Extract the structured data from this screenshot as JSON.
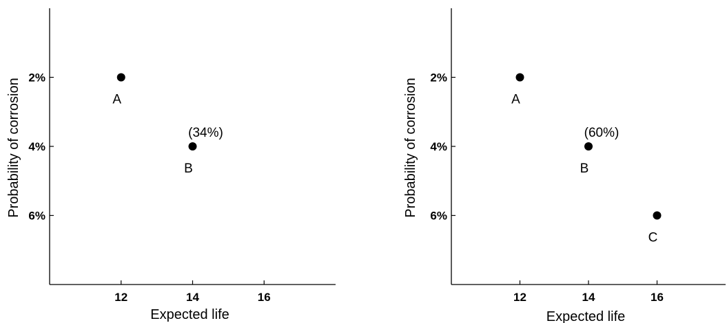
{
  "chart_data": [
    {
      "type": "scatter",
      "xlabel": "Expected life",
      "ylabel": "Probability of corrosion",
      "xlim": [
        10,
        18
      ],
      "ylim": [
        0,
        8
      ],
      "y_inverted": true,
      "x_ticks": [
        12,
        14,
        16
      ],
      "x_tick_labels": [
        "12",
        "14",
        "16"
      ],
      "y_ticks": [
        2,
        4,
        6
      ],
      "y_tick_labels": [
        "2%",
        "4%",
        "6%"
      ],
      "points": [
        {
          "label": "A",
          "x": 12,
          "y": 2,
          "label_pos": "below-left",
          "annotation": ""
        },
        {
          "label": "B",
          "x": 14,
          "y": 4,
          "label_pos": "below-left",
          "annotation": "(34%)"
        }
      ]
    },
    {
      "type": "scatter",
      "xlabel": "Expected life",
      "ylabel": "Probability of corrosion",
      "xlim": [
        10,
        18
      ],
      "ylim": [
        0,
        8
      ],
      "y_inverted": true,
      "x_ticks": [
        12,
        14,
        16
      ],
      "x_tick_labels": [
        "12",
        "14",
        "16"
      ],
      "y_ticks": [
        2,
        4,
        6
      ],
      "y_tick_labels": [
        "2%",
        "4%",
        "6%"
      ],
      "points": [
        {
          "label": "A",
          "x": 12,
          "y": 2,
          "label_pos": "below-left",
          "annotation": ""
        },
        {
          "label": "B",
          "x": 14,
          "y": 4,
          "label_pos": "below-left",
          "annotation": "(60%)"
        },
        {
          "label": "C",
          "x": 16,
          "y": 6,
          "label_pos": "below-left",
          "annotation": ""
        }
      ]
    }
  ]
}
